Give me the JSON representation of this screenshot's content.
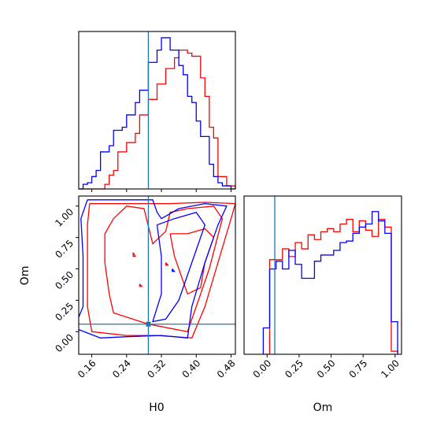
{
  "colors": {
    "red": "#ff0000",
    "blue": "#0000ff",
    "truth": "#1f77b4"
  },
  "chart_data": {
    "type": "corner",
    "parameters": [
      "H0",
      "Om"
    ],
    "truth": {
      "H0": 0.29,
      "Om": 0.06
    },
    "series": [
      {
        "color": "red"
      },
      {
        "color": "blue"
      }
    ],
    "panels": [
      {
        "id": "hist-h0",
        "type": "histogram",
        "xlim": [
          0.13,
          0.49
        ],
        "bin_edges": [
          0.13,
          0.14,
          0.15,
          0.16,
          0.17,
          0.18,
          0.19,
          0.2,
          0.21,
          0.22,
          0.23,
          0.24,
          0.25,
          0.26,
          0.27,
          0.28,
          0.29,
          0.3,
          0.31,
          0.32,
          0.33,
          0.34,
          0.35,
          0.36,
          0.37,
          0.38,
          0.39,
          0.4,
          0.41,
          0.42,
          0.43,
          0.44,
          0.45,
          0.46,
          0.47,
          0.48,
          0.49
        ],
        "series": [
          {
            "color": "red",
            "values": [
              0,
              0,
              0,
              0,
              0,
              0,
              0.03,
              0.09,
              0.12,
              0.24,
              0.24,
              0.3,
              0.3,
              0.36,
              0.48,
              0.48,
              0.58,
              0.58,
              0.68,
              0.68,
              0.78,
              0.78,
              0.85,
              0.9,
              0.9,
              0.88,
              0.86,
              0.86,
              0.72,
              0.6,
              0.4,
              0.33,
              0.08,
              0.08,
              0.02,
              0.02
            ]
          },
          {
            "color": "blue",
            "values": [
              0,
              0.03,
              0.04,
              0.08,
              0.12,
              0.24,
              0.24,
              0.28,
              0.38,
              0.38,
              0.4,
              0.48,
              0.48,
              0.56,
              0.64,
              0.64,
              0.82,
              0.82,
              0.9,
              0.98,
              0.98,
              0.9,
              0.9,
              0.8,
              0.74,
              0.6,
              0.56,
              0.44,
              0.34,
              0.34,
              0.16,
              0.08,
              0.04,
              0.02,
              0.02,
              0
            ]
          }
        ]
      },
      {
        "id": "contour-h0-om",
        "type": "contour",
        "xlabel": "H0",
        "ylabel": "Om",
        "xlim": [
          0.13,
          0.49
        ],
        "ylim": [
          -0.18,
          1.08
        ],
        "xticks": [
          "0.16",
          "0.24",
          "0.32",
          "0.40",
          "0.48"
        ],
        "xtick_values": [
          0.16,
          0.24,
          0.32,
          0.4,
          0.48
        ],
        "yticks": [
          "0.00",
          "0.25",
          "0.50",
          "0.75",
          "1.00"
        ],
        "ytick_values": [
          0.0,
          0.25,
          0.5,
          0.75,
          1.0
        ],
        "series": [
          {
            "color": "red",
            "contours": [
              [
                [
                  0.155,
                  1.02
                ],
                [
                  0.15,
                  0.85
                ],
                [
                  0.15,
                  0.6
                ],
                [
                  0.15,
                  0.2
                ],
                [
                  0.16,
                  0.0
                ],
                [
                  0.24,
                  -0.03
                ],
                [
                  0.31,
                  -0.03
                ],
                [
                  0.39,
                  -0.05
                ],
                [
                  0.42,
                  0.2
                ],
                [
                  0.45,
                  0.55
                ],
                [
                  0.48,
                  0.9
                ],
                [
                  0.49,
                  1.02
                ],
                [
                  0.42,
                  1.03
                ],
                [
                  0.34,
                  1.02
                ],
                [
                  0.25,
                  1.02
                ],
                [
                  0.155,
                  1.02
                ]
              ],
              [
                [
                  0.21,
                  0.9
                ],
                [
                  0.19,
                  0.78
                ],
                [
                  0.19,
                  0.55
                ],
                [
                  0.2,
                  0.3
                ],
                [
                  0.21,
                  0.15
                ],
                [
                  0.29,
                  0.06
                ],
                [
                  0.38,
                  0.0
                ],
                [
                  0.4,
                  0.2
                ],
                [
                  0.43,
                  0.5
                ],
                [
                  0.46,
                  0.9
                ],
                [
                  0.44,
                  1.0
                ],
                [
                  0.38,
                  0.98
                ],
                [
                  0.34,
                  0.95
                ],
                [
                  0.33,
                  0.8
                ],
                [
                  0.3,
                  0.7
                ],
                [
                  0.28,
                  0.98
                ],
                [
                  0.24,
                  1.0
                ],
                [
                  0.21,
                  0.9
                ]
              ],
              [
                [
                  0.34,
                  0.78
                ],
                [
                  0.35,
                  0.6
                ],
                [
                  0.37,
                  0.4
                ],
                [
                  0.38,
                  0.3
                ],
                [
                  0.41,
                  0.35
                ],
                [
                  0.42,
                  0.55
                ],
                [
                  0.44,
                  0.75
                ],
                [
                  0.42,
                  0.82
                ],
                [
                  0.38,
                  0.78
                ],
                [
                  0.34,
                  0.78
                ]
              ],
              [
                [
                  0.255,
                  0.63
                ],
                [
                  0.26,
                  0.6
                ],
                [
                  0.255,
                  0.6
                ],
                [
                  0.255,
                  0.63
                ]
              ],
              [
                [
                  0.27,
                  0.38
                ],
                [
                  0.275,
                  0.36
                ],
                [
                  0.27,
                  0.36
                ],
                [
                  0.27,
                  0.38
                ]
              ],
              [
                [
                  0.33,
                  0.55
                ],
                [
                  0.335,
                  0.53
                ],
                [
                  0.33,
                  0.53
                ],
                [
                  0.33,
                  0.55
                ]
              ]
            ]
          },
          {
            "color": "blue",
            "contours": [
              [
                [
                  0.15,
                  1.05
                ],
                [
                  0.135,
                  0.9
                ],
                [
                  0.14,
                  0.6
                ],
                [
                  0.14,
                  0.2
                ],
                [
                  0.12,
                  0.03
                ],
                [
                  0.18,
                  -0.05
                ],
                [
                  0.24,
                  -0.04
                ],
                [
                  0.32,
                  -0.03
                ],
                [
                  0.38,
                  -0.05
                ],
                [
                  0.39,
                  0.2
                ],
                [
                  0.42,
                  0.55
                ],
                [
                  0.45,
                  0.85
                ],
                [
                  0.47,
                  1.0
                ],
                [
                  0.42,
                  1.02
                ],
                [
                  0.36,
                  0.98
                ],
                [
                  0.32,
                  0.9
                ],
                [
                  0.31,
                  0.95
                ],
                [
                  0.3,
                  1.05
                ],
                [
                  0.22,
                  1.05
                ],
                [
                  0.15,
                  1.05
                ]
              ],
              [
                [
                  0.31,
                  0.85
                ],
                [
                  0.32,
                  0.6
                ],
                [
                  0.32,
                  0.3
                ],
                [
                  0.3,
                  0.08
                ],
                [
                  0.33,
                  0.1
                ],
                [
                  0.36,
                  0.25
                ],
                [
                  0.39,
                  0.55
                ],
                [
                  0.42,
                  0.85
                ],
                [
                  0.4,
                  0.95
                ],
                [
                  0.35,
                  0.9
                ],
                [
                  0.31,
                  0.85
                ]
              ],
              [
                [
                  0.345,
                  0.5
                ],
                [
                  0.35,
                  0.48
                ],
                [
                  0.345,
                  0.48
                ],
                [
                  0.345,
                  0.5
                ]
              ]
            ]
          }
        ]
      },
      {
        "id": "hist-om",
        "type": "histogram",
        "xlabel": "Om",
        "xlim": [
          -0.18,
          1.05
        ],
        "xticks": [
          "0.00",
          "0.25",
          "0.50",
          "0.75",
          "1.00"
        ],
        "xtick_values": [
          0.0,
          0.25,
          0.5,
          0.75,
          1.0
        ],
        "bin_edges": [
          -0.03,
          0.02,
          0.07,
          0.12,
          0.17,
          0.22,
          0.27,
          0.32,
          0.37,
          0.42,
          0.47,
          0.52,
          0.57,
          0.62,
          0.67,
          0.72,
          0.77,
          0.82,
          0.87,
          0.92,
          0.97,
          1.02
        ],
        "series": [
          {
            "color": "red",
            "values": [
              0,
              0.61,
              0.61,
              0.68,
              0.63,
              0.72,
              0.68,
              0.77,
              0.74,
              0.79,
              0.81,
              0.79,
              0.84,
              0.87,
              0.79,
              0.86,
              0.8,
              0.76,
              0.87,
              0.82,
              0.02
            ]
          },
          {
            "color": "blue",
            "values": [
              0.17,
              0.55,
              0.6,
              0.55,
              0.67,
              0.58,
              0.49,
              0.49,
              0.6,
              0.64,
              0.64,
              0.67,
              0.72,
              0.73,
              0.78,
              0.82,
              0.84,
              0.92,
              0.86,
              0.78,
              0.21
            ]
          }
        ]
      }
    ]
  }
}
